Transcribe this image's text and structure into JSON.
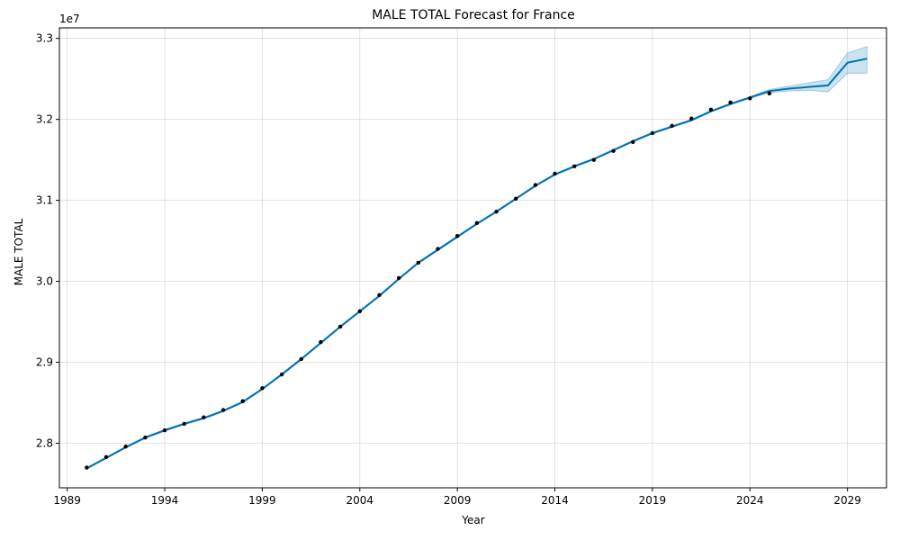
{
  "chart_data": {
    "type": "line",
    "title": "MALE TOTAL Forecast for France",
    "xlabel": "Year",
    "ylabel": "MALE TOTAL",
    "y_offset_label": "1e7",
    "xlim": [
      1988.6,
      2031.0
    ],
    "ylim": [
      27450000,
      33130000
    ],
    "x_ticks": [
      1989,
      1994,
      1999,
      2004,
      2009,
      2014,
      2019,
      2024,
      2029
    ],
    "y_ticks": [
      28000000,
      29000000,
      30000000,
      31000000,
      32000000,
      33000000
    ],
    "y_tick_labels": [
      "2.8",
      "2.9",
      "3.0",
      "3.1",
      "3.2",
      "3.3"
    ],
    "grid": true,
    "colors": {
      "forecast_line": "#0072b2",
      "interval_fill": "#0072b2",
      "observed_points": "#000000"
    },
    "observed": {
      "x": [
        1990,
        1991,
        1992,
        1993,
        1994,
        1995,
        1996,
        1997,
        1998,
        1999,
        2000,
        2001,
        2002,
        2003,
        2004,
        2005,
        2006,
        2007,
        2008,
        2009,
        2010,
        2011,
        2012,
        2013,
        2014,
        2015,
        2016,
        2017,
        2018,
        2019,
        2020,
        2021,
        2022,
        2023,
        2024,
        2025
      ],
      "y": [
        27700000,
        27830000,
        27960000,
        28070000,
        28160000,
        28240000,
        28320000,
        28410000,
        28520000,
        28680000,
        28850000,
        29040000,
        29250000,
        29440000,
        29630000,
        29830000,
        30040000,
        30230000,
        30400000,
        30560000,
        30720000,
        30860000,
        31020000,
        31190000,
        31330000,
        31420000,
        31500000,
        31610000,
        31720000,
        31830000,
        31920000,
        32010000,
        32120000,
        32210000,
        32260000,
        32320000
      ]
    },
    "forecast": {
      "x": [
        1990,
        1991,
        1992,
        1993,
        1994,
        1995,
        1996,
        1997,
        1998,
        1999,
        2000,
        2001,
        2002,
        2003,
        2004,
        2005,
        2006,
        2007,
        2008,
        2009,
        2010,
        2011,
        2012,
        2013,
        2014,
        2015,
        2016,
        2017,
        2018,
        2019,
        2020,
        2021,
        2022,
        2023,
        2024,
        2025,
        2026,
        2027,
        2028,
        2029,
        2030
      ],
      "y": [
        27690000,
        27820000,
        27950000,
        28070000,
        28160000,
        28240000,
        28310000,
        28400000,
        28510000,
        28670000,
        28850000,
        29040000,
        29240000,
        29440000,
        29630000,
        29820000,
        30030000,
        30230000,
        30390000,
        30550000,
        30710000,
        30860000,
        31020000,
        31180000,
        31320000,
        31420000,
        31510000,
        31620000,
        31730000,
        31830000,
        31910000,
        31990000,
        32100000,
        32190000,
        32270000,
        32350000,
        32380000,
        32400000,
        32420000,
        32700000,
        32750000
      ],
      "lower": [
        27680000,
        27810000,
        27940000,
        28060000,
        28150000,
        28230000,
        28300000,
        28390000,
        28500000,
        28660000,
        28840000,
        29030000,
        29230000,
        29430000,
        29620000,
        29810000,
        30020000,
        30220000,
        30380000,
        30540000,
        30700000,
        30850000,
        31010000,
        31170000,
        31310000,
        31410000,
        31500000,
        31610000,
        31720000,
        31820000,
        31900000,
        31980000,
        32090000,
        32180000,
        32260000,
        32330000,
        32350000,
        32360000,
        32340000,
        32570000,
        32570000
      ],
      "upper": [
        27700000,
        27830000,
        27960000,
        28080000,
        28170000,
        28250000,
        28320000,
        28410000,
        28520000,
        28680000,
        28860000,
        29050000,
        29250000,
        29450000,
        29640000,
        29830000,
        30040000,
        30240000,
        30400000,
        30560000,
        30720000,
        30870000,
        31030000,
        31190000,
        31330000,
        31430000,
        31520000,
        31630000,
        31740000,
        31840000,
        31920000,
        32000000,
        32110000,
        32200000,
        32280000,
        32370000,
        32410000,
        32450000,
        32490000,
        32820000,
        32900000
      ]
    }
  }
}
